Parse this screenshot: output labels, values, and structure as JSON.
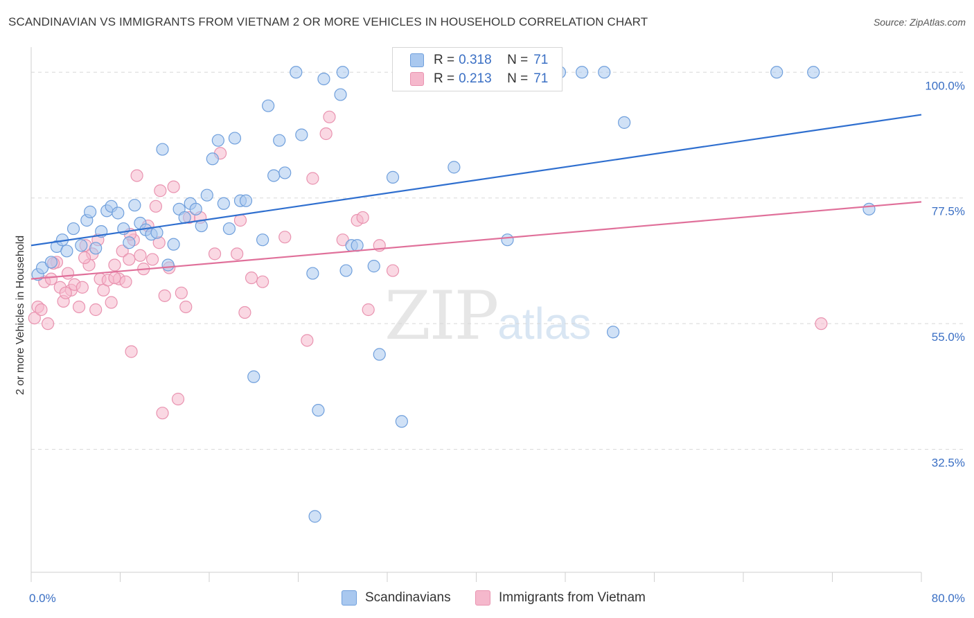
{
  "title": "SCANDINAVIAN VS IMMIGRANTS FROM VIETNAM 2 OR MORE VEHICLES IN HOUSEHOLD CORRELATION CHART",
  "source": "Source: ZipAtlas.com",
  "watermark": {
    "zip": "ZIP",
    "atlas": "atlas"
  },
  "legend": [
    {
      "r_label": "R =",
      "r_value": "0.318",
      "n_label": "N =",
      "n_value": "71"
    },
    {
      "r_label": "R =",
      "r_value": "0.213",
      "n_label": "N =",
      "n_value": "71"
    }
  ],
  "bottom_legend": [
    "Scandinavians",
    "Immigrants from Vietnam"
  ],
  "colors": {
    "blue_fill": "#a9c8ef",
    "blue_stroke": "#6f9fdc",
    "blue_line": "#2f6fcf",
    "pink_fill": "#f5b8cc",
    "pink_stroke": "#e993b0",
    "pink_line": "#e0709a",
    "tick_label": "#3a6fc4",
    "grid": "#d8d8d8"
  },
  "chart_data": {
    "type": "scatter",
    "title": "SCANDINAVIAN VS IMMIGRANTS FROM VIETNAM 2 OR MORE VEHICLES IN HOUSEHOLD CORRELATION CHART",
    "xlabel": "",
    "ylabel": "2 or more Vehicles in Household",
    "xlim": [
      0,
      80
    ],
    "ylim": [
      10.5,
      104.5
    ],
    "x_tick_labels": [
      "0.0%",
      "80.0%"
    ],
    "y_ticks": [
      32.5,
      55.0,
      77.5,
      100.0
    ],
    "y_tick_labels": [
      "32.5%",
      "55.0%",
      "77.5%",
      "100.0%"
    ],
    "grid": true,
    "series": [
      {
        "name": "Scandinavians",
        "r": 0.318,
        "n": 71,
        "trend": [
          [
            0,
            69.0
          ],
          [
            80,
            92.4
          ]
        ],
        "points": [
          [
            0.6,
            63.8
          ],
          [
            1.0,
            65.0
          ],
          [
            1.8,
            66.0
          ],
          [
            2.3,
            68.8
          ],
          [
            2.8,
            70.0
          ],
          [
            3.2,
            68.0
          ],
          [
            3.8,
            72.0
          ],
          [
            4.5,
            69.0
          ],
          [
            5.0,
            73.5
          ],
          [
            5.3,
            75.0
          ],
          [
            5.8,
            68.5
          ],
          [
            6.3,
            71.5
          ],
          [
            6.8,
            75.2
          ],
          [
            7.2,
            76.0
          ],
          [
            7.8,
            74.8
          ],
          [
            8.3,
            72.0
          ],
          [
            8.8,
            69.5
          ],
          [
            9.3,
            76.2
          ],
          [
            9.8,
            73.0
          ],
          [
            10.3,
            71.8
          ],
          [
            10.8,
            71.0
          ],
          [
            11.3,
            71.3
          ],
          [
            11.8,
            86.2
          ],
          [
            12.3,
            65.5
          ],
          [
            12.8,
            69.2
          ],
          [
            13.3,
            75.5
          ],
          [
            13.8,
            74.0
          ],
          [
            14.3,
            76.5
          ],
          [
            14.8,
            75.5
          ],
          [
            15.3,
            72.5
          ],
          [
            15.8,
            78.0
          ],
          [
            16.3,
            84.5
          ],
          [
            16.8,
            87.8
          ],
          [
            17.3,
            76.5
          ],
          [
            17.8,
            72.0
          ],
          [
            18.3,
            88.2
          ],
          [
            18.8,
            77.0
          ],
          [
            19.3,
            77.0
          ],
          [
            20.0,
            45.5
          ],
          [
            20.8,
            70.0
          ],
          [
            21.3,
            94.0
          ],
          [
            21.8,
            81.5
          ],
          [
            22.3,
            87.8
          ],
          [
            22.8,
            82.0
          ],
          [
            23.8,
            100.0
          ],
          [
            24.3,
            88.8
          ],
          [
            25.3,
            64.0
          ],
          [
            25.8,
            39.5
          ],
          [
            25.5,
            20.5
          ],
          [
            26.3,
            98.8
          ],
          [
            27.8,
            96.0
          ],
          [
            28.0,
            100.0
          ],
          [
            28.3,
            64.5
          ],
          [
            28.8,
            69.0
          ],
          [
            29.3,
            69.0
          ],
          [
            30.8,
            65.3
          ],
          [
            31.3,
            49.5
          ],
          [
            32.5,
            81.2
          ],
          [
            33.3,
            37.5
          ],
          [
            35.0,
            100.0
          ],
          [
            38.0,
            83.0
          ],
          [
            42.8,
            70.0
          ],
          [
            44.0,
            100.0
          ],
          [
            47.5,
            100.0
          ],
          [
            49.5,
            100.0
          ],
          [
            51.5,
            100.0
          ],
          [
            52.3,
            53.5
          ],
          [
            53.3,
            91.0
          ],
          [
            67.0,
            100.0
          ],
          [
            70.3,
            100.0
          ],
          [
            75.3,
            75.5
          ]
        ]
      },
      {
        "name": "Immigrants from Vietnam",
        "r": 0.213,
        "n": 71,
        "trend": [
          [
            0,
            63.0
          ],
          [
            80,
            76.8
          ]
        ],
        "points": [
          [
            0.3,
            56.0
          ],
          [
            0.6,
            58.0
          ],
          [
            0.9,
            57.5
          ],
          [
            1.2,
            62.5
          ],
          [
            1.5,
            55.0
          ],
          [
            1.8,
            63.0
          ],
          [
            2.3,
            66.0
          ],
          [
            2.6,
            61.5
          ],
          [
            2.9,
            59.0
          ],
          [
            3.3,
            64.0
          ],
          [
            3.6,
            61.0
          ],
          [
            3.9,
            62.0
          ],
          [
            4.3,
            58.0
          ],
          [
            4.6,
            61.5
          ],
          [
            4.9,
            69.0
          ],
          [
            5.2,
            65.5
          ],
          [
            5.5,
            67.5
          ],
          [
            5.8,
            57.5
          ],
          [
            6.2,
            63.0
          ],
          [
            6.5,
            61.0
          ],
          [
            6.9,
            62.8
          ],
          [
            7.2,
            58.8
          ],
          [
            7.5,
            65.5
          ],
          [
            7.9,
            63.0
          ],
          [
            8.2,
            68.0
          ],
          [
            8.5,
            62.5
          ],
          [
            8.8,
            66.5
          ],
          [
            9.2,
            70.0
          ],
          [
            9.5,
            81.5
          ],
          [
            9.8,
            67.2
          ],
          [
            10.1,
            64.8
          ],
          [
            10.5,
            72.5
          ],
          [
            10.9,
            66.5
          ],
          [
            11.2,
            76.0
          ],
          [
            11.6,
            78.8
          ],
          [
            11.8,
            39.0
          ],
          [
            12.0,
            60.0
          ],
          [
            12.4,
            65.0
          ],
          [
            12.8,
            79.5
          ],
          [
            13.2,
            41.5
          ],
          [
            13.5,
            60.5
          ],
          [
            13.9,
            58.0
          ],
          [
            14.2,
            74.0
          ],
          [
            15.2,
            74.0
          ],
          [
            16.5,
            67.5
          ],
          [
            17.0,
            85.5
          ],
          [
            18.5,
            67.5
          ],
          [
            18.8,
            73.5
          ],
          [
            19.2,
            57.0
          ],
          [
            19.8,
            63.2
          ],
          [
            20.8,
            62.5
          ],
          [
            22.8,
            70.5
          ],
          [
            24.8,
            52.0
          ],
          [
            25.3,
            81.0
          ],
          [
            26.5,
            89.0
          ],
          [
            26.8,
            92.0
          ],
          [
            28.0,
            70.0
          ],
          [
            29.3,
            73.5
          ],
          [
            29.8,
            74.0
          ],
          [
            30.3,
            57.5
          ],
          [
            31.3,
            69.0
          ],
          [
            32.5,
            64.5
          ],
          [
            9.0,
            50.0
          ],
          [
            7.5,
            63.2
          ],
          [
            4.8,
            66.8
          ],
          [
            2.0,
            65.8
          ],
          [
            6.0,
            70.0
          ],
          [
            3.1,
            60.5
          ],
          [
            8.9,
            71.0
          ],
          [
            11.5,
            69.5
          ],
          [
            71.0,
            55.0
          ]
        ]
      }
    ]
  }
}
